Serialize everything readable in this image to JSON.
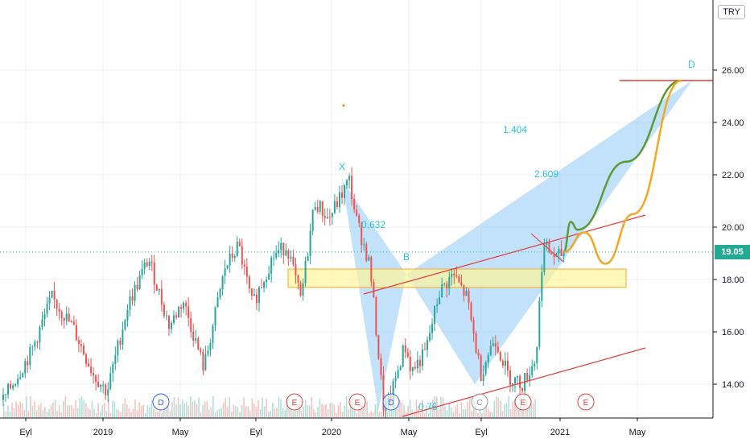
{
  "currency_button": "TRY",
  "last_price": "19.05",
  "chart_data": {
    "type": "candlestick",
    "x_ticks": [
      "Eyl",
      "2019",
      "May",
      "Eyl",
      "2020",
      "May",
      "Eyl",
      "2021",
      "May"
    ],
    "y_ticks": [
      "26.00",
      "24.00",
      "22.00",
      "20.00",
      "18.00",
      "16.00",
      "14.00"
    ],
    "ylim": [
      12.6,
      27.0
    ],
    "grid": true,
    "pattern_points": [
      {
        "label": "X",
        "price": 21.8
      },
      {
        "label": "B",
        "price": 18.2
      },
      {
        "label": "D",
        "price": 25.6
      }
    ],
    "fib_labels": [
      "0.632",
      "1.404",
      "2.609",
      "0.76"
    ],
    "support_zone": [
      17.7,
      18.4
    ],
    "target_level": 25.6,
    "event_markers": [
      {
        "label": "D",
        "kind": "dividend"
      },
      {
        "label": "E",
        "kind": "earnings"
      },
      {
        "label": "E",
        "kind": "earnings"
      },
      {
        "label": "D",
        "kind": "dividend"
      },
      {
        "label": "C",
        "kind": "split"
      },
      {
        "label": "E",
        "kind": "earnings"
      },
      {
        "label": "E",
        "kind": "earnings"
      }
    ],
    "key_prices": [
      {
        "t": 0.0,
        "p": 13.4
      },
      {
        "t": 0.04,
        "p": 15.2
      },
      {
        "t": 0.07,
        "p": 17.3
      },
      {
        "t": 0.1,
        "p": 16.2
      },
      {
        "t": 0.13,
        "p": 14.4
      },
      {
        "t": 0.15,
        "p": 13.7
      },
      {
        "t": 0.18,
        "p": 17.0
      },
      {
        "t": 0.21,
        "p": 18.8
      },
      {
        "t": 0.24,
        "p": 16.2
      },
      {
        "t": 0.26,
        "p": 17.2
      },
      {
        "t": 0.29,
        "p": 14.6
      },
      {
        "t": 0.32,
        "p": 18.4
      },
      {
        "t": 0.34,
        "p": 19.3
      },
      {
        "t": 0.36,
        "p": 17.0
      },
      {
        "t": 0.39,
        "p": 18.9
      },
      {
        "t": 0.41,
        "p": 19.3
      },
      {
        "t": 0.43,
        "p": 17.2
      },
      {
        "t": 0.45,
        "p": 21.0
      },
      {
        "t": 0.47,
        "p": 20.3
      },
      {
        "t": 0.5,
        "p": 21.8
      },
      {
        "t": 0.51,
        "p": 20.3
      },
      {
        "t": 0.53,
        "p": 18.5
      },
      {
        "t": 0.55,
        "p": 13.0
      },
      {
        "t": 0.56,
        "p": 13.5
      },
      {
        "t": 0.58,
        "p": 15.5
      },
      {
        "t": 0.59,
        "p": 14.5
      },
      {
        "t": 0.61,
        "p": 15.2
      },
      {
        "t": 0.63,
        "p": 17.5
      },
      {
        "t": 0.65,
        "p": 18.2
      },
      {
        "t": 0.67,
        "p": 17.3
      },
      {
        "t": 0.69,
        "p": 14.4
      },
      {
        "t": 0.71,
        "p": 15.8
      },
      {
        "t": 0.73,
        "p": 14.3
      },
      {
        "t": 0.75,
        "p": 14.0
      },
      {
        "t": 0.77,
        "p": 15.0
      },
      {
        "t": 0.78,
        "p": 19.3
      },
      {
        "t": 0.8,
        "p": 18.8
      },
      {
        "t": 0.81,
        "p": 19.05
      }
    ],
    "projections": [
      {
        "name": "green",
        "color": "#5b9a35",
        "points": [
          {
            "t": 0.81,
            "p": 19.05
          },
          {
            "t": 0.82,
            "p": 20.2
          },
          {
            "t": 0.83,
            "p": 19.9
          },
          {
            "t": 0.9,
            "p": 22.5
          },
          {
            "t": 0.98,
            "p": 25.6
          }
        ]
      },
      {
        "name": "orange",
        "color": "#f5a623",
        "points": [
          {
            "t": 0.81,
            "p": 19.05
          },
          {
            "t": 0.84,
            "p": 19.8
          },
          {
            "t": 0.87,
            "p": 18.6
          },
          {
            "t": 0.91,
            "p": 20.5
          },
          {
            "t": 0.98,
            "p": 25.6
          }
        ]
      }
    ]
  }
}
